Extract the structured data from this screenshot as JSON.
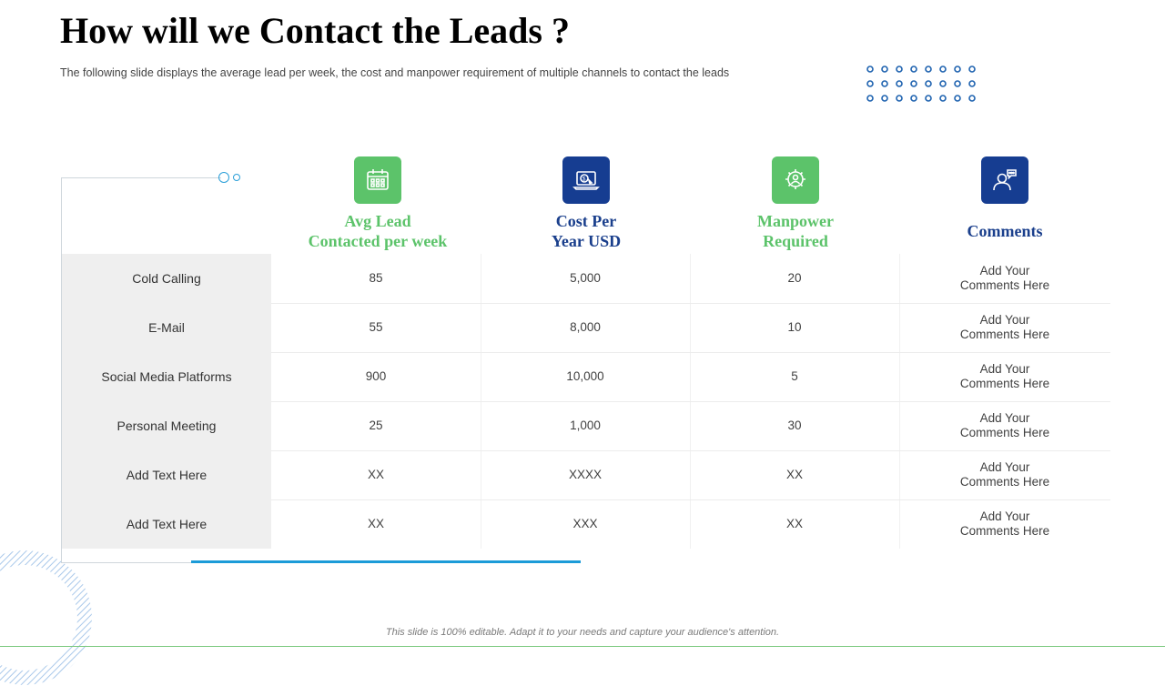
{
  "slide": {
    "title": "How will we Contact the Leads ?",
    "subtitle": "The following  slide displays the average  lead per week, the cost and manpower  requirement  of multiple channels to contact the leads",
    "footer": "This slide is 100% editable. Adapt it to your needs and capture your audience's attention."
  },
  "columns": [
    {
      "label_line1": "Avg Lead",
      "label_line2": "Contacted per week",
      "icon": "calendar-icon",
      "color": "#5cc36a"
    },
    {
      "label_line1": "Cost Per",
      "label_line2": "Year USD",
      "icon": "laptop-dollar-icon",
      "color": "#163d91"
    },
    {
      "label_line1": "Manpower",
      "label_line2": "Required",
      "icon": "gear-person-icon",
      "color": "#5cc36a"
    },
    {
      "label_line1": "Comments",
      "label_line2": "",
      "icon": "user-chat-icon",
      "color": "#163d91"
    }
  ],
  "rows": [
    {
      "channel": "Cold Calling",
      "avg_lead": "85",
      "cost": "5,000",
      "manpower": "20",
      "comment_line1": "Add Your",
      "comment_line2": "Comments Here"
    },
    {
      "channel": "E-Mail",
      "avg_lead": "55",
      "cost": "8,000",
      "manpower": "10",
      "comment_line1": "Add Your",
      "comment_line2": "Comments Here"
    },
    {
      "channel": "Social Media Platforms",
      "avg_lead": "900",
      "cost": "10,000",
      "manpower": "5",
      "comment_line1": "Add Your",
      "comment_line2": "Comments Here"
    },
    {
      "channel": "Personal Meeting",
      "avg_lead": "25",
      "cost": "1,000",
      "manpower": "30",
      "comment_line1": "Add Your",
      "comment_line2": "Comments Here"
    },
    {
      "channel": "Add Text Here",
      "avg_lead": "XX",
      "cost": "XXXX",
      "manpower": "XX",
      "comment_line1": "Add Your",
      "comment_line2": "Comments Here"
    },
    {
      "channel": "Add Text Here",
      "avg_lead": "XX",
      "cost": "XXX",
      "manpower": "XX",
      "comment_line1": "Add Your",
      "comment_line2": "Comments Here"
    }
  ]
}
